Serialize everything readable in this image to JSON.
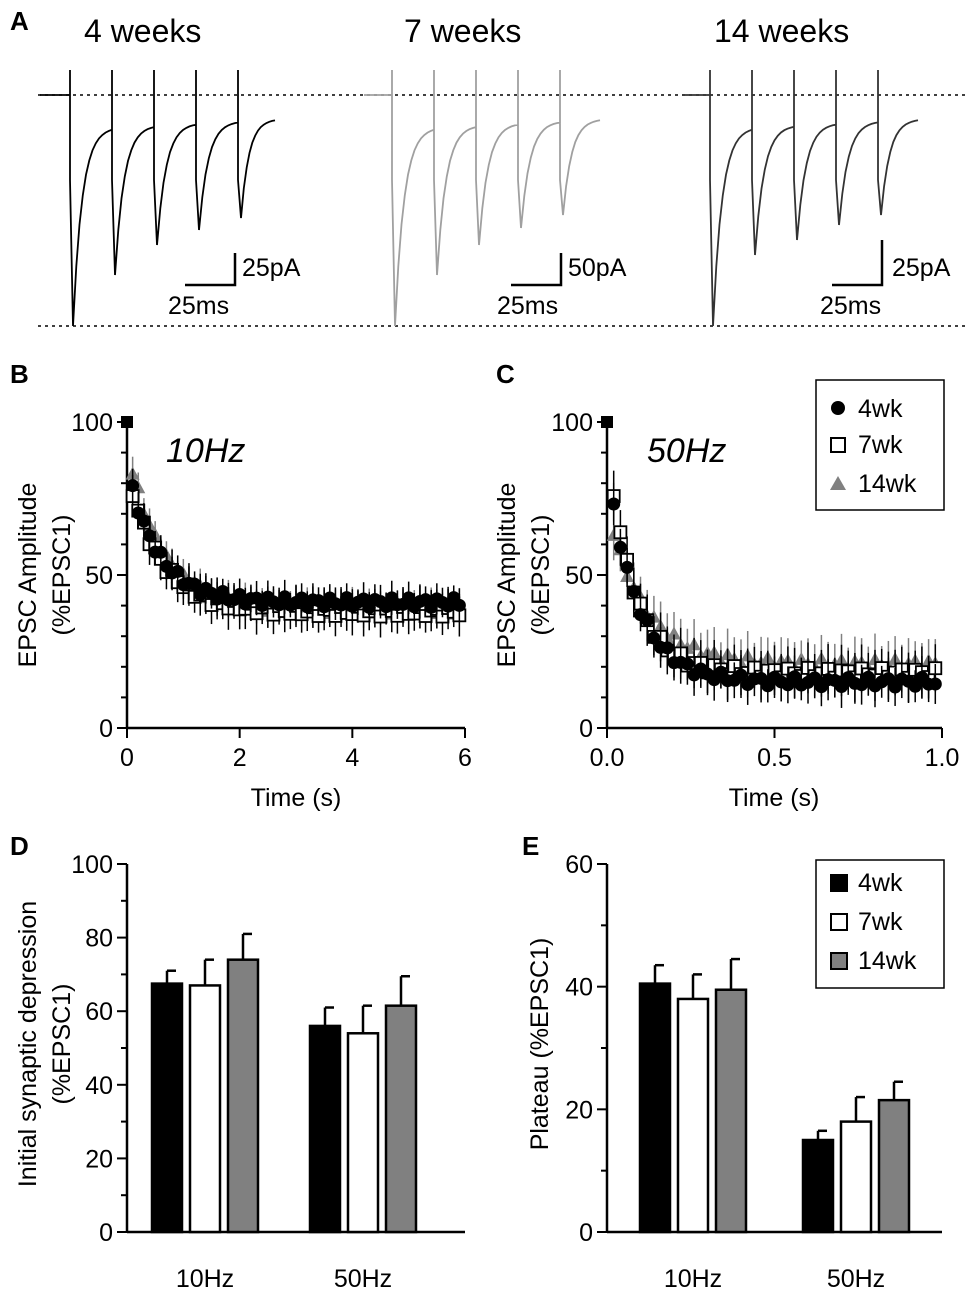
{
  "colors": {
    "wk4": "#000000",
    "wk7": "#ffffff",
    "wk14": "#808080",
    "trace7": "#a0a0a0",
    "trace14": "#333333"
  },
  "panelA": {
    "letter": "A",
    "traces": [
      {
        "label": "4 weeks",
        "scale_y": "25pA",
        "scale_x": "25ms",
        "color_key": "wk4"
      },
      {
        "label": "7 weeks",
        "scale_y": "50pA",
        "scale_x": "25ms",
        "color_key": "trace7"
      },
      {
        "label": "14 weeks",
        "scale_y": "25pA",
        "scale_x": "25ms",
        "color_key": "trace14"
      }
    ]
  },
  "chart_data": [
    {
      "panel": "B",
      "type": "scatter",
      "annotation": "10Hz",
      "xlabel": "Time (s)",
      "ylabel_line1": "EPSC Amplitude",
      "ylabel_line2": "(%EPSC1)",
      "xlim": [
        0,
        6
      ],
      "ylim": [
        0,
        100
      ],
      "xticks": [
        0,
        2,
        4,
        6
      ],
      "xtick_labels": [
        "0",
        "2",
        "4",
        "6"
      ],
      "yticks": [
        0,
        50,
        100
      ],
      "ytick_labels": [
        "0",
        "50",
        "100"
      ],
      "n_points": 60,
      "dt": 0.1,
      "series": [
        {
          "name": "4wk",
          "marker": "circle",
          "color_key": "wk4",
          "first": 100,
          "start": 78,
          "plateau": 41,
          "tau": 0.55,
          "err": 4
        },
        {
          "name": "7wk",
          "marker": "square",
          "color_key": "wk7",
          "first": 100,
          "start": 77,
          "plateau": 38,
          "tau": 0.6,
          "err": 5
        },
        {
          "name": "14wk",
          "marker": "triangle",
          "color_key": "wk14",
          "first": 100,
          "start": 84,
          "plateau": 39,
          "tau": 0.6,
          "err": 4
        }
      ]
    },
    {
      "panel": "C",
      "type": "scatter",
      "annotation": "50Hz",
      "xlabel": "Time (s)",
      "ylabel_line1": "EPSC Amplitude",
      "ylabel_line2": "(%EPSC1)",
      "xlim": [
        0,
        1
      ],
      "ylim": [
        0,
        100
      ],
      "xticks": [
        0,
        0.5,
        1
      ],
      "xtick_labels": [
        "0.0",
        "0.5",
        "1.0"
      ],
      "yticks": [
        0,
        50,
        100
      ],
      "ytick_labels": [
        "0",
        "50",
        "100"
      ],
      "n_points": 50,
      "dt": 0.02,
      "legend": {
        "position": "top-right",
        "entries": [
          "4wk",
          "7wk",
          "14wk"
        ]
      },
      "series": [
        {
          "name": "4wk",
          "marker": "circle",
          "color_key": "wk4",
          "first": 100,
          "start": 72,
          "plateau": 15,
          "tau": 0.09,
          "err": 5
        },
        {
          "name": "7wk",
          "marker": "square",
          "color_key": "wk7",
          "first": 100,
          "start": 77,
          "plateau": 18,
          "tau": 0.08,
          "err": 6
        },
        {
          "name": "14wk",
          "marker": "triangle",
          "color_key": "wk14",
          "first": 100,
          "start": 64,
          "plateau": 21,
          "tau": 0.11,
          "err": 6
        }
      ]
    },
    {
      "panel": "D",
      "type": "bar",
      "ylabel_line1": "Initial synaptic depression",
      "ylabel_line2": "(%EPSC1)",
      "ylim": [
        0,
        100
      ],
      "yticks": [
        0,
        20,
        40,
        60,
        80,
        100
      ],
      "ytick_labels": [
        "0",
        "20",
        "40",
        "60",
        "80",
        "100"
      ],
      "categories": [
        "10Hz",
        "50Hz"
      ],
      "series": [
        {
          "name": "4wk",
          "color_key": "wk4",
          "values": [
            67.5,
            56
          ],
          "errors": [
            3.5,
            5
          ]
        },
        {
          "name": "7wk",
          "color_key": "wk7",
          "values": [
            67,
            54
          ],
          "errors": [
            7,
            7.5
          ]
        },
        {
          "name": "14wk",
          "color_key": "wk14",
          "values": [
            74,
            61.5
          ],
          "errors": [
            7,
            8
          ]
        }
      ]
    },
    {
      "panel": "E",
      "type": "bar",
      "ylabel_line1": "Plateau (%EPSC1)",
      "ylabel_line2": "",
      "ylim": [
        0,
        60
      ],
      "yticks": [
        0,
        20,
        40,
        60
      ],
      "ytick_labels": [
        "0",
        "20",
        "40",
        "60"
      ],
      "categories": [
        "10Hz",
        "50Hz"
      ],
      "legend": {
        "position": "top-right",
        "entries": [
          "4wk",
          "7wk",
          "14wk"
        ]
      },
      "series": [
        {
          "name": "4wk",
          "color_key": "wk4",
          "values": [
            40.5,
            15
          ],
          "errors": [
            3,
            1.5
          ]
        },
        {
          "name": "7wk",
          "color_key": "wk7",
          "values": [
            38,
            18
          ],
          "errors": [
            4,
            4
          ]
        },
        {
          "name": "14wk",
          "color_key": "wk14",
          "values": [
            39.5,
            21.5
          ],
          "errors": [
            5,
            3
          ]
        }
      ]
    }
  ]
}
